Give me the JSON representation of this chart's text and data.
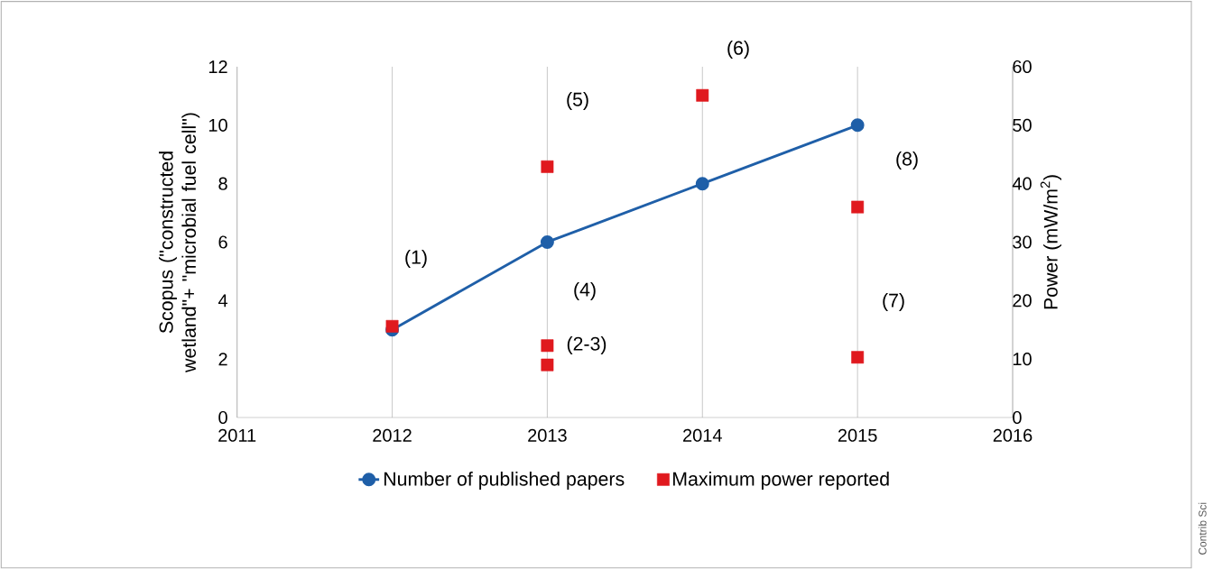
{
  "chart_data": {
    "type": "line",
    "ylabel": "Scopus (\"constructed wetland\"+ \"microbial fuel cell\")",
    "y2label": "Power (mW/m$^{2}$)",
    "series": [
      {
        "name": "Number of published papers",
        "color": "#1f5fa8",
        "marker": "circle",
        "x": [
          2012,
          2013,
          2014,
          2015
        ],
        "values": [
          3,
          6,
          8,
          10
        ]
      },
      {
        "name": "Maximum power reported",
        "type": "scatter",
        "color": "#e0191e",
        "marker": "square",
        "axis": "y2",
        "x": [
          2012,
          2013,
          2013,
          2013,
          2014,
          2015,
          2015
        ],
        "values": [
          15.6,
          42.9,
          12.3,
          9,
          55.1,
          36,
          10.3
        ]
      }
    ],
    "xlim": [
      2011,
      2016
    ],
    "xticks": [
      2011,
      2012,
      2013,
      2014,
      2015,
      2016
    ],
    "ylim": [
      0,
      12
    ],
    "yticks": [
      0,
      2,
      4,
      6,
      8,
      10,
      12
    ],
    "y2lim": [
      0,
      60
    ],
    "y2ticks": [
      0,
      10,
      20,
      30,
      40,
      50,
      60
    ],
    "grid": "x",
    "legend": "bottom",
    "annotations": [
      "(1)",
      "(2-3)",
      "(4)",
      "(5)",
      "(6)",
      "(7)",
      "(8)",
      "Contrib Sci"
    ]
  }
}
